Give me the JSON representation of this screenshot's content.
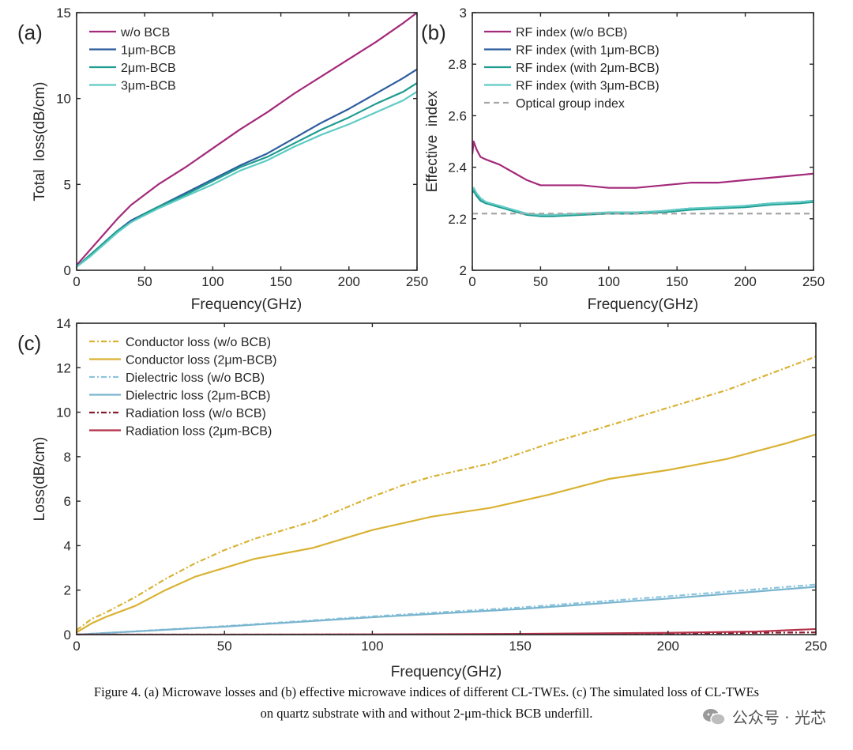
{
  "panels": [
    {
      "id": "a",
      "panel_label": "(a)",
      "chart_data": {
        "type": "line",
        "xlabel": "Frequency(GHz)",
        "ylabel": "Total  loss(dB/cm)",
        "xlim": [
          0,
          250
        ],
        "ylim": [
          0,
          15
        ],
        "xticks": [
          0,
          50,
          100,
          150,
          200,
          250
        ],
        "yticks": [
          0,
          5,
          10,
          15
        ],
        "grid": false,
        "legend": "top-left",
        "series": [
          {
            "name": "w/o BCB",
            "color": "#A3297A",
            "dash": "solid",
            "x": [
              0,
              10,
              20,
              30,
              40,
              50,
              60,
              80,
              100,
              120,
              140,
              160,
              180,
              200,
              220,
              240,
              250
            ],
            "y": [
              0.3,
              1.2,
              2.1,
              3.0,
              3.8,
              4.4,
              5.0,
              6.0,
              7.1,
              8.2,
              9.2,
              10.3,
              11.3,
              12.3,
              13.3,
              14.4,
              15.0
            ]
          },
          {
            "name": "1μm-BCB",
            "color": "#2E5C9E",
            "dash": "solid",
            "x": [
              0,
              10,
              20,
              30,
              40,
              50,
              60,
              80,
              100,
              120,
              140,
              160,
              180,
              200,
              220,
              240,
              250
            ],
            "y": [
              0.2,
              0.9,
              1.6,
              2.3,
              2.9,
              3.3,
              3.7,
              4.5,
              5.3,
              6.1,
              6.8,
              7.7,
              8.6,
              9.4,
              10.3,
              11.2,
              11.7
            ]
          },
          {
            "name": "2μm-BCB",
            "color": "#1E9C8F",
            "dash": "solid",
            "x": [
              0,
              10,
              20,
              30,
              40,
              50,
              60,
              80,
              100,
              120,
              140,
              160,
              180,
              200,
              220,
              240,
              250
            ],
            "y": [
              0.2,
              0.9,
              1.6,
              2.3,
              2.8,
              3.3,
              3.7,
              4.4,
              5.2,
              6.0,
              6.6,
              7.4,
              8.2,
              8.9,
              9.7,
              10.4,
              10.9
            ]
          },
          {
            "name": "3μm-BCB",
            "color": "#5FCBC4",
            "dash": "solid",
            "x": [
              0,
              10,
              20,
              30,
              40,
              50,
              60,
              80,
              100,
              120,
              140,
              160,
              180,
              200,
              220,
              240,
              250
            ],
            "y": [
              0.2,
              0.8,
              1.5,
              2.2,
              2.8,
              3.2,
              3.6,
              4.3,
              5.0,
              5.8,
              6.4,
              7.2,
              7.9,
              8.5,
              9.2,
              9.9,
              10.4
            ]
          }
        ]
      }
    },
    {
      "id": "b",
      "panel_label": "(b)",
      "chart_data": {
        "type": "line",
        "xlabel": "Frequency(GHz)",
        "ylabel": "Effective  index",
        "xlim": [
          0,
          250
        ],
        "ylim": [
          2,
          3
        ],
        "xticks": [
          0,
          50,
          100,
          150,
          200,
          250
        ],
        "yticks": [
          2,
          2.2,
          2.4,
          2.6,
          2.8,
          3
        ],
        "grid": false,
        "legend": "top-left",
        "series": [
          {
            "name": "RF index (w/o BCB)",
            "color": "#A3297A",
            "dash": "solid",
            "x": [
              0,
              1,
              3,
              6,
              10,
              20,
              30,
              40,
              50,
              60,
              80,
              100,
              120,
              140,
              160,
              180,
              200,
              220,
              240,
              250
            ],
            "y": [
              2.45,
              2.5,
              2.47,
              2.44,
              2.43,
              2.41,
              2.38,
              2.35,
              2.33,
              2.33,
              2.33,
              2.32,
              2.32,
              2.33,
              2.34,
              2.34,
              2.35,
              2.36,
              2.37,
              2.375
            ]
          },
          {
            "name": "RF index (with 1μm-BCB)",
            "color": "#2E5C9E",
            "dash": "solid",
            "x": [
              0,
              1,
              3,
              6,
              10,
              20,
              30,
              40,
              50,
              60,
              80,
              100,
              120,
              140,
              160,
              180,
              200,
              220,
              240,
              250
            ],
            "y": [
              2.3,
              2.31,
              2.29,
              2.27,
              2.26,
              2.25,
              2.23,
              2.22,
              2.21,
              2.21,
              2.22,
              2.22,
              2.22,
              2.23,
              2.24,
              2.24,
              2.25,
              2.26,
              2.265,
              2.27
            ]
          },
          {
            "name": "RF index (with 2μm-BCB)",
            "color": "#1E9C8F",
            "dash": "solid",
            "x": [
              0,
              1,
              3,
              6,
              10,
              20,
              30,
              40,
              50,
              60,
              80,
              100,
              120,
              140,
              160,
              180,
              200,
              220,
              240,
              250
            ],
            "y": [
              2.3,
              2.31,
              2.29,
              2.27,
              2.26,
              2.245,
              2.23,
              2.215,
              2.21,
              2.21,
              2.215,
              2.22,
              2.22,
              2.225,
              2.235,
              2.24,
              2.245,
              2.255,
              2.26,
              2.265
            ]
          },
          {
            "name": "RF index (with 3μm-BCB)",
            "color": "#5FCBC4",
            "dash": "solid",
            "x": [
              0,
              1,
              3,
              6,
              10,
              20,
              30,
              40,
              50,
              60,
              80,
              100,
              120,
              140,
              160,
              180,
              200,
              220,
              240,
              250
            ],
            "y": [
              2.31,
              2.32,
              2.3,
              2.28,
              2.265,
              2.25,
              2.235,
              2.22,
              2.215,
              2.215,
              2.22,
              2.225,
              2.225,
              2.23,
              2.24,
              2.245,
              2.25,
              2.26,
              2.265,
              2.27
            ]
          },
          {
            "name": "Optical group index",
            "color": "#A6A6A6",
            "dash": "dashed",
            "x": [
              0,
              250
            ],
            "y": [
              2.22,
              2.22
            ]
          }
        ]
      }
    },
    {
      "id": "c",
      "panel_label": "(c)",
      "chart_data": {
        "type": "line",
        "xlabel": "Frequency(GHz)",
        "ylabel": "Loss(dB/cm)",
        "xlim": [
          0,
          250
        ],
        "ylim": [
          0,
          14
        ],
        "xticks": [
          0,
          50,
          100,
          150,
          200,
          250
        ],
        "yticks": [
          0,
          2,
          4,
          6,
          8,
          10,
          12,
          14
        ],
        "grid": false,
        "legend": "top-left",
        "series": [
          {
            "name": "Conductor loss (w/o BCB)",
            "color": "#D9B233",
            "dash": "dashdot",
            "x": [
              0,
              5,
              10,
              20,
              30,
              40,
              50,
              60,
              80,
              100,
              110,
              120,
              140,
              160,
              180,
              200,
              220,
              240,
              250
            ],
            "y": [
              0.2,
              0.7,
              1.0,
              1.7,
              2.5,
              3.2,
              3.8,
              4.3,
              5.1,
              6.2,
              6.7,
              7.1,
              7.7,
              8.6,
              9.4,
              10.2,
              11.0,
              12.0,
              12.5
            ]
          },
          {
            "name": "Conductor loss (2μm-BCB)",
            "color": "#D9B233",
            "dash": "solid",
            "x": [
              0,
              5,
              10,
              20,
              30,
              40,
              50,
              60,
              80,
              100,
              110,
              120,
              140,
              160,
              180,
              200,
              220,
              240,
              250
            ],
            "y": [
              0.1,
              0.5,
              0.8,
              1.3,
              2.0,
              2.6,
              3.0,
              3.4,
              3.9,
              4.7,
              5.0,
              5.3,
              5.7,
              6.3,
              7.0,
              7.4,
              7.9,
              8.6,
              9.0
            ]
          },
          {
            "name": "Dielectric loss (w/o BCB)",
            "color": "#8CC5DE",
            "dash": "dashdot",
            "x": [
              0,
              50,
              100,
              150,
              200,
              250
            ],
            "y": [
              0,
              0.38,
              0.82,
              1.22,
              1.72,
              2.25
            ]
          },
          {
            "name": "Dielectric loss (2μm-BCB)",
            "color": "#7AB5CF",
            "dash": "solid",
            "x": [
              0,
              50,
              100,
              150,
              200,
              250
            ],
            "y": [
              0,
              0.36,
              0.78,
              1.15,
              1.62,
              2.15
            ]
          },
          {
            "name": "Radiation loss (w/o BCB)",
            "color": "#8B1A2E",
            "dash": "dashdot",
            "x": [
              0,
              50,
              100,
              150,
              200,
              250
            ],
            "y": [
              0,
              0,
              0.005,
              0.02,
              0.05,
              0.1
            ]
          },
          {
            "name": "Radiation loss (2μm-BCB)",
            "color": "#B5314A",
            "dash": "solid",
            "x": [
              0,
              50,
              100,
              150,
              200,
              230,
              250
            ],
            "y": [
              0,
              0,
              0.01,
              0.03,
              0.08,
              0.14,
              0.25
            ]
          }
        ]
      }
    }
  ],
  "caption": {
    "line1": "Figure 4. (a) Microwave losses and (b) effective microwave indices of different CL-TWEs. (c) The simulated loss of CL-TWEs",
    "line2": "on quartz substrate with and without 2-μm-thick BCB underfill."
  },
  "watermark": {
    "text": "公众号 · 光芯",
    "icon": "wechat-icon"
  }
}
